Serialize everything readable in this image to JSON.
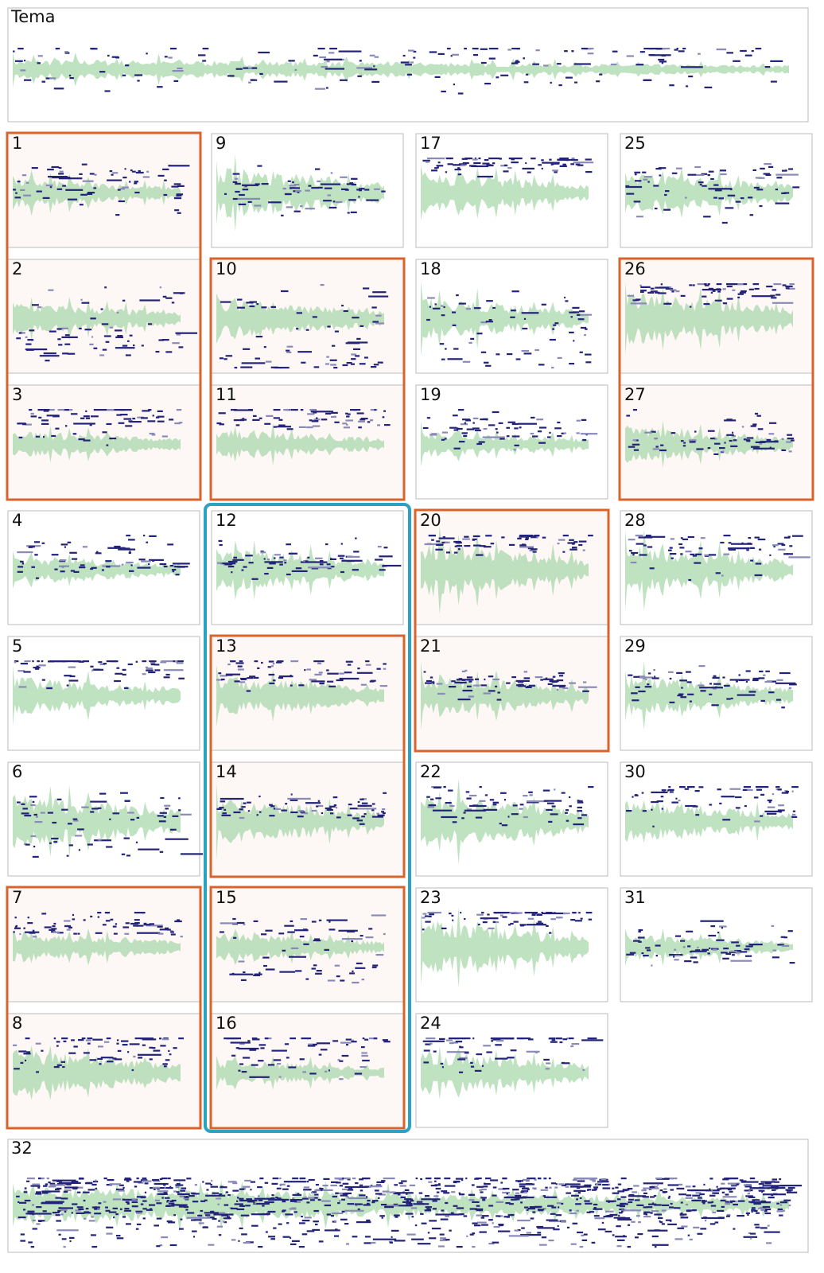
{
  "header": {
    "title": "Tema"
  },
  "panels": [
    "1",
    "2",
    "3",
    "4",
    "5",
    "6",
    "7",
    "8",
    "9",
    "10",
    "11",
    "12",
    "13",
    "14",
    "15",
    "16",
    "17",
    "18",
    "19",
    "20",
    "21",
    "22",
    "23",
    "24",
    "25",
    "26",
    "27",
    "28",
    "29",
    "30",
    "31"
  ],
  "finale": {
    "label": "32"
  }
}
